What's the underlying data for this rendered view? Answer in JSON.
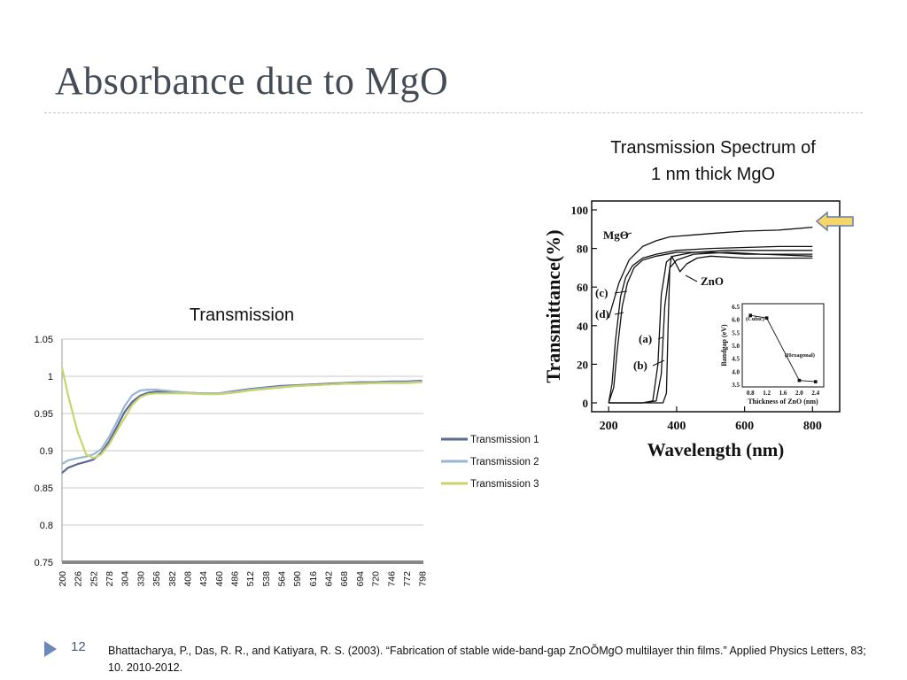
{
  "slide": {
    "title": "Absorbance due to MgO",
    "number": "12",
    "citation": "Bhattacharya, P., Das, R. R., and Katiyara, R. S. (2003). “Fabrication of stable wide-band-gap ZnOÕMgO multilayer thin films.” Applied Physics Letters, 83; 10. 2010-2012.",
    "right_caption_line1": "Transmission Spectrum of",
    "right_caption_line2": "1 nm thick MgO"
  },
  "colors": {
    "title": "#444c56",
    "series1": "#5a6a99",
    "series2": "#9bb5d4",
    "series3": "#c9d56a",
    "marker": "#6b8ab8",
    "arrow_fill": "#f5d66b",
    "arrow_stroke": "#6b7fa8"
  },
  "chart_data": [
    {
      "type": "line",
      "title": "Transmission",
      "ylim": [
        0.75,
        1.05
      ],
      "yticks": [
        "0.75",
        "0.8",
        "0.85",
        "0.9",
        "0.95",
        "1",
        "1.05"
      ],
      "xlim": [
        200,
        800
      ],
      "xticks": [
        "200",
        "226",
        "252",
        "278",
        "304",
        "330",
        "356",
        "382",
        "408",
        "434",
        "460",
        "486",
        "512",
        "538",
        "564",
        "590",
        "616",
        "642",
        "668",
        "694",
        "720",
        "746",
        "772",
        "798"
      ],
      "grid": true,
      "legend_position": "right",
      "x": [
        200,
        210,
        226,
        240,
        252,
        265,
        278,
        290,
        304,
        317,
        330,
        343,
        356,
        369,
        382,
        395,
        408,
        434,
        460,
        486,
        512,
        538,
        564,
        590,
        616,
        642,
        668,
        694,
        720,
        746,
        772,
        798
      ],
      "series": [
        {
          "name": "Transmission 1",
          "values": [
            0.87,
            0.877,
            0.882,
            0.885,
            0.888,
            0.897,
            0.912,
            0.93,
            0.952,
            0.966,
            0.974,
            0.978,
            0.979,
            0.979,
            0.978,
            0.978,
            0.978,
            0.977,
            0.977,
            0.98,
            0.983,
            0.985,
            0.987,
            0.988,
            0.989,
            0.99,
            0.991,
            0.992,
            0.992,
            0.993,
            0.993,
            0.994
          ]
        },
        {
          "name": "Transmission 2",
          "values": [
            0.882,
            0.887,
            0.89,
            0.892,
            0.895,
            0.902,
            0.918,
            0.937,
            0.96,
            0.975,
            0.981,
            0.982,
            0.982,
            0.981,
            0.98,
            0.979,
            0.978,
            0.977,
            0.977,
            0.979,
            0.982,
            0.984,
            0.986,
            0.987,
            0.988,
            0.989,
            0.99,
            0.991,
            0.991,
            0.992,
            0.992,
            0.993
          ]
        },
        {
          "name": "Transmission 3",
          "values": [
            1.012,
            0.975,
            0.925,
            0.895,
            0.89,
            0.895,
            0.908,
            0.925,
            0.944,
            0.962,
            0.972,
            0.976,
            0.977,
            0.977,
            0.977,
            0.977,
            0.977,
            0.976,
            0.976,
            0.978,
            0.981,
            0.983,
            0.985,
            0.987,
            0.988,
            0.989,
            0.99,
            0.99,
            0.991,
            0.991,
            0.991,
            0.992
          ]
        }
      ]
    },
    {
      "type": "line",
      "xlabel": "Wavelength (nm)",
      "ylabel": "Transmittance(%)",
      "xlim": [
        150,
        880
      ],
      "ylim": [
        0,
        100
      ],
      "xticks": [
        "200",
        "400",
        "600",
        "800"
      ],
      "yticks": [
        "0",
        "20",
        "40",
        "60",
        "80",
        "100"
      ],
      "annotations": [
        "MgO",
        "ZnO",
        "(a)",
        "(b)",
        "(c)",
        "(d)"
      ],
      "series": [
        {
          "name": "MgO",
          "x": [
            200,
            230,
            260,
            300,
            340,
            380,
            450,
            520,
            600,
            700,
            800
          ],
          "values": [
            44,
            62,
            74,
            81,
            84,
            86,
            87,
            88,
            89,
            89.5,
            91
          ]
        },
        {
          "name": "(c)",
          "x": [
            200,
            210,
            220,
            235,
            250,
            270,
            300,
            340,
            400,
            500,
            600,
            700,
            800
          ],
          "values": [
            0,
            10,
            32,
            55,
            65,
            71,
            75,
            77,
            79,
            80,
            80.5,
            81,
            81
          ]
        },
        {
          "name": "(d)",
          "x": [
            200,
            215,
            225,
            240,
            255,
            275,
            300,
            340,
            400,
            500,
            600,
            700,
            800
          ],
          "values": [
            0,
            8,
            27,
            50,
            62,
            70,
            74,
            76,
            78,
            78,
            77,
            77,
            77
          ]
        },
        {
          "name": "(a)",
          "x": [
            200,
            300,
            330,
            345,
            355,
            370,
            390,
            450,
            550,
            650,
            800
          ],
          "values": [
            0,
            0,
            1,
            20,
            56,
            73,
            76,
            78,
            79,
            79,
            79
          ]
        },
        {
          "name": "(b)",
          "x": [
            200,
            300,
            340,
            355,
            365,
            380,
            400,
            450,
            550,
            650,
            800
          ],
          "values": [
            0,
            0,
            1,
            15,
            50,
            70,
            74,
            77,
            78,
            77,
            76
          ]
        },
        {
          "name": "ZnO",
          "x": [
            200,
            360,
            370,
            375,
            380,
            385,
            395,
            410,
            430,
            460,
            500,
            600,
            700,
            800
          ],
          "values": [
            0,
            0,
            5,
            40,
            70,
            76,
            73,
            68,
            72,
            75,
            76,
            75,
            75,
            75
          ]
        }
      ],
      "inset": {
        "xlabel": "Thickness of ZnO (nm)",
        "ylabel": "Bandgap (eV)",
        "xlim": [
          0.6,
          2.6
        ],
        "ylim": [
          3.4,
          6.6
        ],
        "xticks": [
          "0.8",
          "1.2",
          "1.6",
          "2.0",
          "2.4"
        ],
        "yticks": [
          "3.5",
          "4.0",
          "4.5",
          "5.0",
          "5.5",
          "6.0",
          "6.5"
        ],
        "annotations": [
          "(Cubic)",
          "(Hexagonal)"
        ],
        "x": [
          0.8,
          1.2,
          2.0,
          2.4
        ],
        "values": [
          6.15,
          6.05,
          3.65,
          3.6
        ]
      }
    }
  ]
}
